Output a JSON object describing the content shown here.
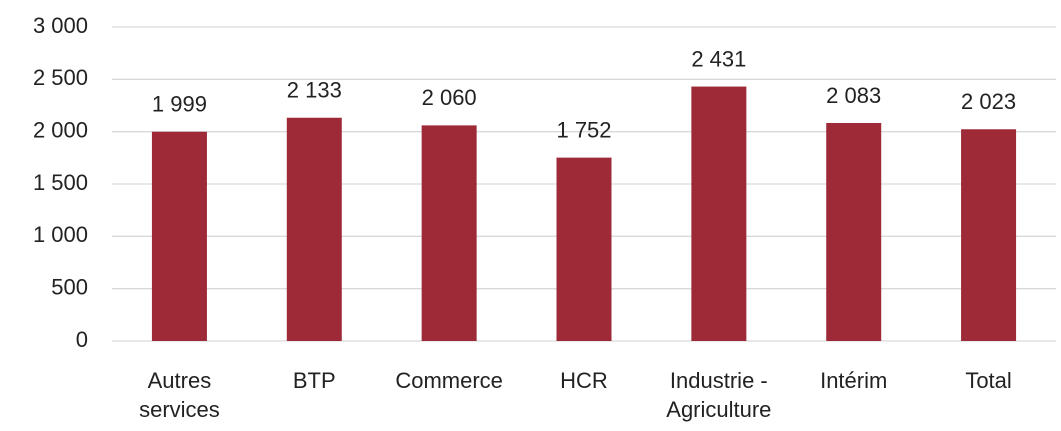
{
  "chart_data": {
    "type": "bar",
    "categories": [
      "Autres services",
      "BTP",
      "Commerce",
      "HCR",
      "Industrie - Agriculture",
      "Intérim",
      "Total"
    ],
    "values": [
      1999,
      2133,
      2060,
      1752,
      2431,
      2083,
      2023
    ],
    "value_labels": [
      "1 999",
      "2 133",
      "2 060",
      "1 752",
      "2 431",
      "2 083",
      "2 023"
    ],
    "color": "#9e2a38",
    "ylim": [
      0,
      3000
    ],
    "yticks": [
      0,
      500,
      {
        "value": 1000,
        "label": "1 000"
      },
      {
        "value": 1500,
        "label": "1 500"
      },
      {
        "value": 2000,
        "label": "2 000"
      },
      {
        "value": 2500,
        "label": "2 500"
      },
      {
        "value": 3000,
        "label": "3 000"
      }
    ],
    "grid": true
  }
}
